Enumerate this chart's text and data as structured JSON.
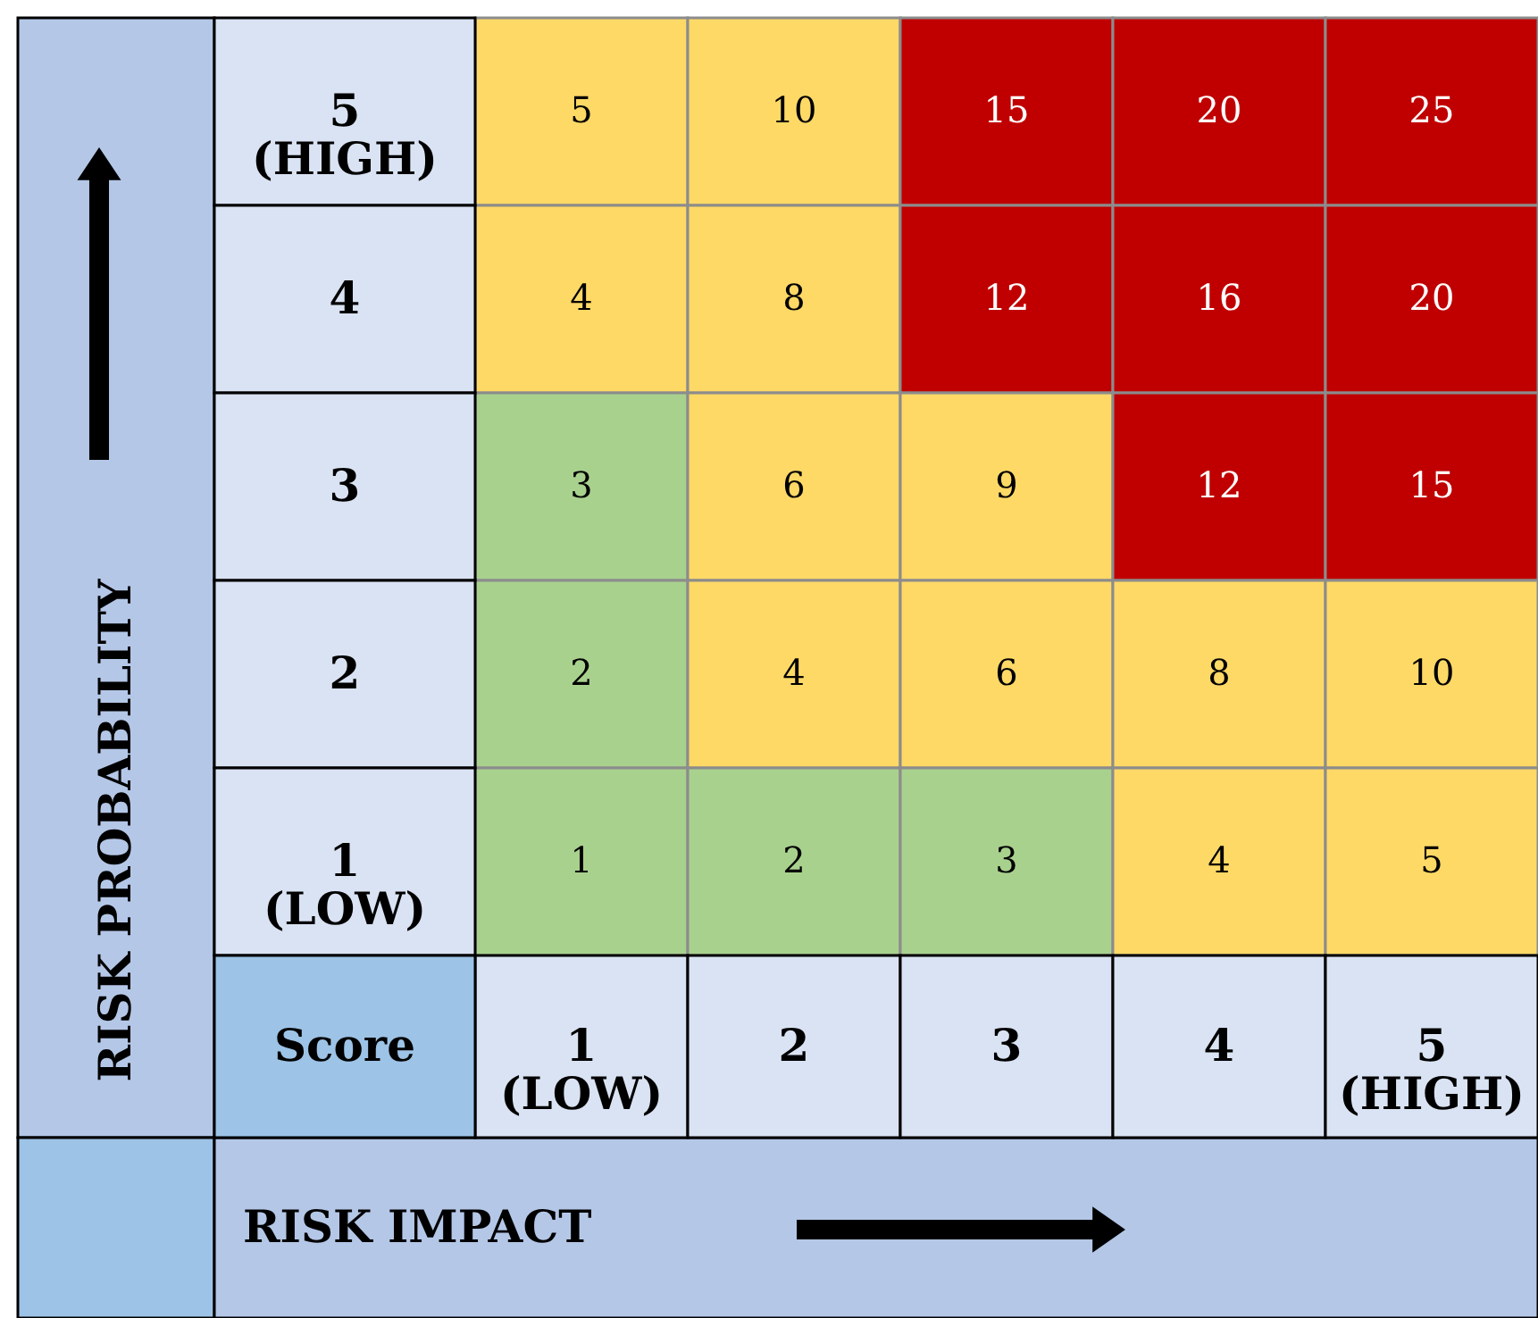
{
  "chart_data": {
    "type": "heatmap",
    "xlabel": "RISK IMPACT",
    "ylabel": "RISK PROBABILITY",
    "categories": [
      "1 (LOW)",
      "2",
      "3",
      "4",
      "5 (HIGH)"
    ],
    "y_categories": [
      "5 (HIGH)",
      "4",
      "3",
      "2",
      "1 (LOW)"
    ],
    "cells": [
      [
        5,
        10,
        15,
        20,
        25
      ],
      [
        4,
        8,
        12,
        16,
        20
      ],
      [
        3,
        6,
        9,
        12,
        15
      ],
      [
        2,
        4,
        6,
        8,
        10
      ],
      [
        1,
        2,
        3,
        4,
        5
      ]
    ],
    "colors": [
      [
        "#ffd966",
        "#ffd966",
        "#c00000",
        "#c00000",
        "#c00000"
      ],
      [
        "#ffd966",
        "#ffd966",
        "#c00000",
        "#c00000",
        "#c00000"
      ],
      [
        "#a9d18e",
        "#ffd966",
        "#ffd966",
        "#c00000",
        "#c00000"
      ],
      [
        "#a9d18e",
        "#ffd966",
        "#ffd966",
        "#ffd966",
        "#ffd966"
      ],
      [
        "#a9d18e",
        "#a9d18e",
        "#a9d18e",
        "#ffd966",
        "#ffd966"
      ]
    ],
    "data_labels": true,
    "annotations": [
      "Score"
    ]
  }
}
